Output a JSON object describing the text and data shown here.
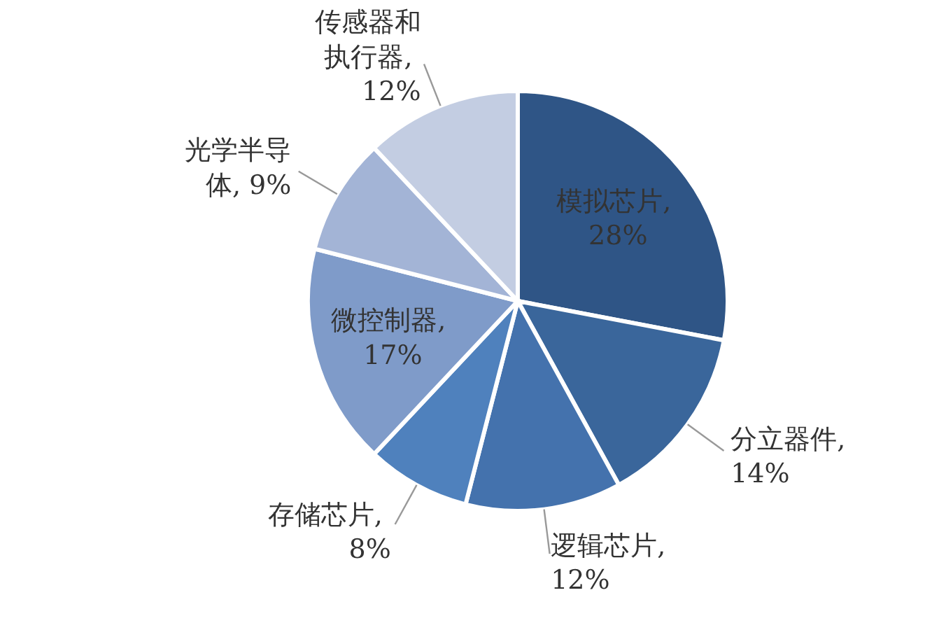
{
  "chart_data": {
    "type": "pie",
    "categories": [
      "模拟芯片",
      "分立器件",
      "逻辑芯片",
      "存储芯片",
      "微控制器",
      "光学半导体",
      "传感器和执行器"
    ],
    "values": [
      28,
      14,
      12,
      8,
      17,
      9,
      12
    ],
    "value_labels": [
      ", 28%",
      ", 14%",
      ", 12%",
      ", 8%",
      ", 17%",
      ", 9%",
      ", 12%"
    ],
    "colors": [
      "#2f5586",
      "#3a669b",
      "#4472ad",
      "#4f81bd",
      "#7f9bc9",
      "#a3b4d6",
      "#c3cde2"
    ]
  }
}
